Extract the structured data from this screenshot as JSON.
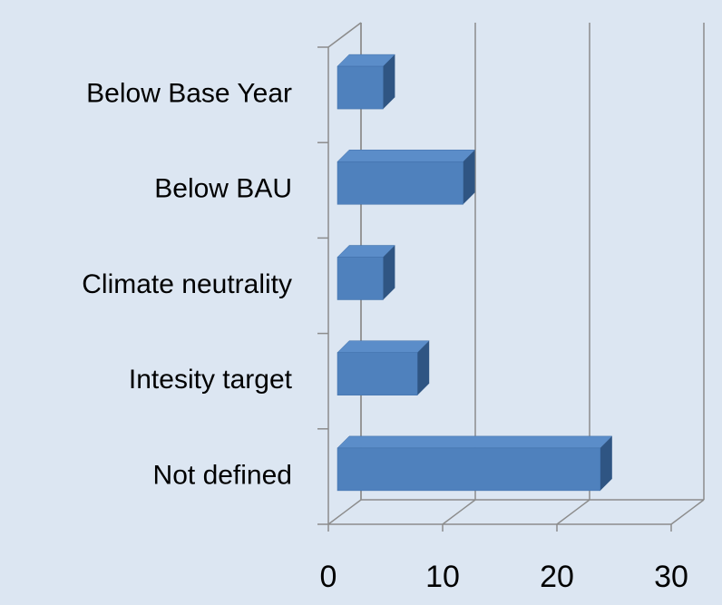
{
  "chart_data": {
    "type": "bar3d_horizontal",
    "categories": [
      "Below Base Year",
      "Below BAU",
      "Climate neutrality",
      "Intesity target",
      "Not defined"
    ],
    "values": [
      4,
      11,
      4,
      7,
      23
    ],
    "color": "#4f81bd",
    "xlim": [
      0,
      30
    ],
    "xticks": [
      0,
      10,
      20,
      30
    ],
    "grid": true
  }
}
